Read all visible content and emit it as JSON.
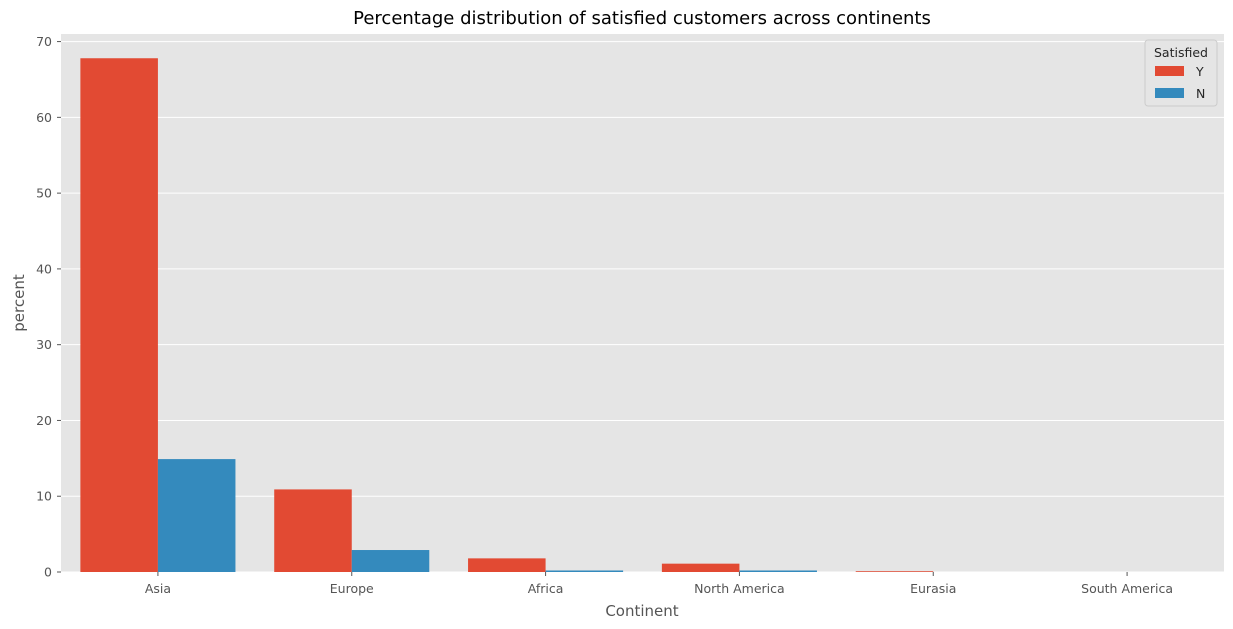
{
  "chart_data": {
    "type": "bar",
    "title": "Percentage distribution of satisfied customers across continents",
    "xlabel": "Continent",
    "ylabel": "percent",
    "categories": [
      "Asia",
      "Europe",
      "Africa",
      "North America",
      "Eurasia",
      "South America"
    ],
    "series": [
      {
        "name": "Y",
        "color": "#E24A33",
        "values": [
          67.8,
          10.9,
          1.8,
          1.1,
          0.1,
          0.0
        ]
      },
      {
        "name": "N",
        "color": "#348ABD",
        "values": [
          14.9,
          2.9,
          0.2,
          0.2,
          0.0,
          0.0
        ]
      }
    ],
    "ylim": [
      0,
      71
    ],
    "yticks": [
      0,
      10,
      20,
      30,
      40,
      50,
      60,
      70
    ],
    "grid": true,
    "legend": {
      "title": "Satisfied",
      "placement": "top-right"
    },
    "colors": {
      "plot_background": "#E5E5E5",
      "grid": "#FFFFFF"
    }
  }
}
